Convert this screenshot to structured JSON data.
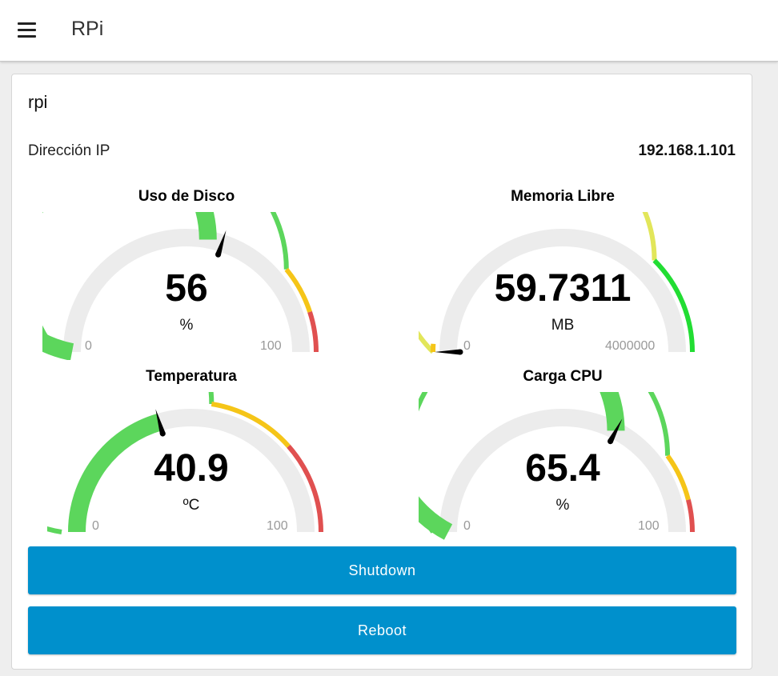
{
  "header": {
    "title": "RPi",
    "menu_icon": "hamburger-menu-icon"
  },
  "card": {
    "title": "rpi",
    "ip_label": "Dirección IP",
    "ip_value": "192.168.1.101"
  },
  "gauges": [
    {
      "id": "disk",
      "title": "Uso de Disco",
      "value_text": "56",
      "value": 56,
      "units": "%",
      "min": 0,
      "max": 100,
      "min_label": "0",
      "max_label": "100",
      "fill_color": "#5cd65c",
      "pointer_fraction": 0.6,
      "sectors": [
        {
          "from": 0,
          "to": 0.78,
          "color": "#5cd65c"
        },
        {
          "from": 0.78,
          "to": 0.9,
          "color": "#f5c518"
        },
        {
          "from": 0.9,
          "to": 1,
          "color": "#e05050"
        }
      ]
    },
    {
      "id": "memory",
      "title": "Memoria Libre",
      "value_text": "59.7311",
      "value": 59.7311,
      "units": "MB",
      "min": 0,
      "max": 4000000,
      "min_label": "0",
      "max_label": "4000000",
      "fill_color": "#f5c518",
      "pointer_fraction": 0.0,
      "sectors": [
        {
          "from": 0,
          "to": 0.75,
          "color": "#e2e65a"
        },
        {
          "from": 0.75,
          "to": 1,
          "color": "#22dd33"
        }
      ]
    },
    {
      "id": "temperature",
      "title": "Temperatura",
      "value_text": "40.9",
      "value": 40.9,
      "units": "ºC",
      "min": 0,
      "max": 100,
      "min_label": "0",
      "max_label": "100",
      "fill_color": "#5cd65c",
      "pointer_fraction": 0.41,
      "sectors": [
        {
          "from": 0,
          "to": 0.55,
          "color": "#5cd65c"
        },
        {
          "from": 0.55,
          "to": 0.77,
          "color": "#f5c518"
        },
        {
          "from": 0.77,
          "to": 1,
          "color": "#e05050"
        }
      ]
    },
    {
      "id": "cpu",
      "title": "Carga CPU",
      "value_text": "65.4",
      "value": 65.4,
      "units": "%",
      "min": 0,
      "max": 100,
      "min_label": "0",
      "max_label": "100",
      "fill_color": "#5cd65c",
      "pointer_fraction": 0.654,
      "sectors": [
        {
          "from": 0,
          "to": 0.8,
          "color": "#5cd65c"
        },
        {
          "from": 0.8,
          "to": 0.92,
          "color": "#f5c518"
        },
        {
          "from": 0.92,
          "to": 1,
          "color": "#e05050"
        }
      ]
    }
  ],
  "buttons": {
    "shutdown": "Shutdown",
    "reboot": "Reboot",
    "color": "#0090cc"
  }
}
